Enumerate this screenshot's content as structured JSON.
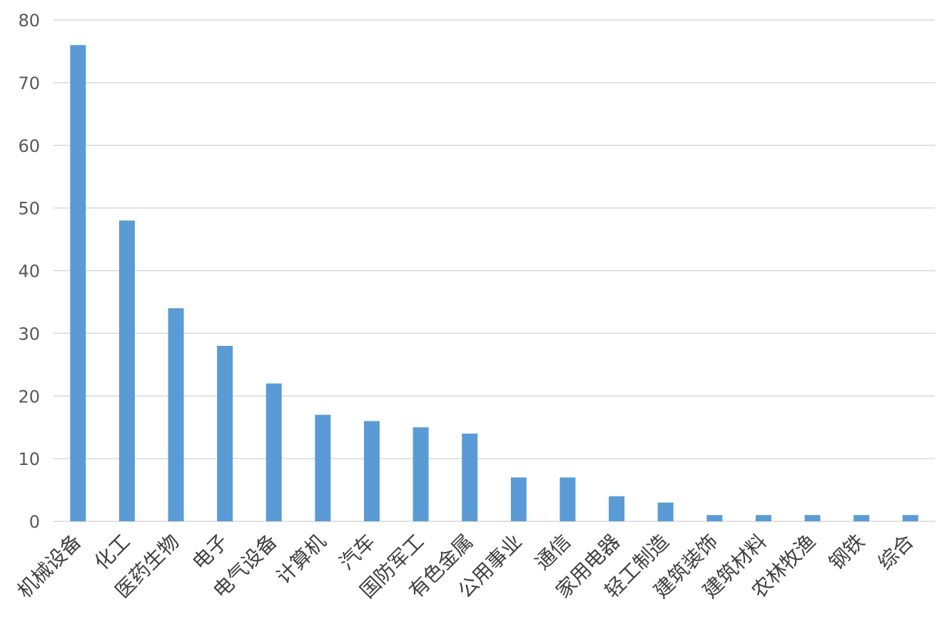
{
  "chart_data": {
    "type": "bar",
    "title": "",
    "xlabel": "",
    "ylabel": "",
    "ylim": [
      0,
      80
    ],
    "yticks": [
      0,
      10,
      20,
      30,
      40,
      50,
      60,
      70,
      80
    ],
    "grid": true,
    "legend": "none",
    "bar_color": "#5b9bd5",
    "categories": [
      "机械设备",
      "化工",
      "医药生物",
      "电子",
      "电气设备",
      "计算机",
      "汽车",
      "国防军工",
      "有色金属",
      "公用事业",
      "通信",
      "家用电器",
      "轻工制造",
      "建筑装饰",
      "建筑材料",
      "农林牧渔",
      "钢铁",
      "综合"
    ],
    "values": [
      76,
      48,
      34,
      28,
      22,
      17,
      16,
      15,
      14,
      7,
      7,
      4,
      3,
      1,
      1,
      1,
      1,
      1
    ]
  }
}
